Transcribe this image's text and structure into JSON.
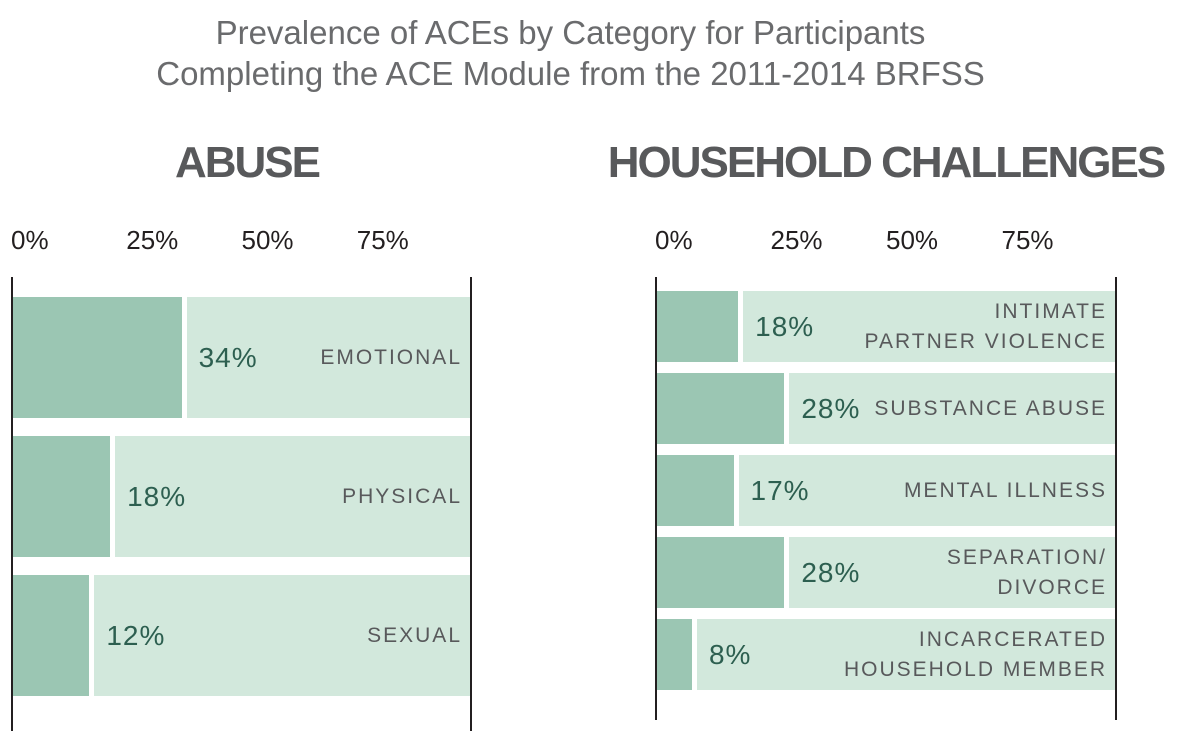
{
  "title": {
    "line1": "Prevalence of ACEs by Category for Participants",
    "line2": "Completing the ACE Module from the 2011-2014 BRFSS"
  },
  "colors": {
    "bar_fill": "#9bc6b3",
    "bar_track": "#d2e8dc",
    "value_text": "#2d5f50",
    "label_text": "#58595b",
    "header_text": "#58595b",
    "title_text": "#6a6b6d",
    "axis_text": "#231f20",
    "axis_line": "#231f20"
  },
  "chart_data": [
    {
      "type": "bar",
      "title": "ABUSE",
      "orientation": "horizontal",
      "unit": "%",
      "xlim": [
        0,
        100
      ],
      "x_ticks": [
        "0%",
        "25%",
        "50%",
        "75%"
      ],
      "grid": false,
      "axis_lines": "vertical at 0% and 100%",
      "categories": [
        "EMOTIONAL",
        "PHYSICAL",
        "SEXUAL"
      ],
      "values": [
        34,
        18,
        12
      ],
      "bar_display_pct": [
        37,
        21.5,
        17
      ],
      "bars": [
        {
          "value": 34,
          "value_label": "34%",
          "label_lines": [
            "EMOTIONAL"
          ]
        },
        {
          "value": 18,
          "value_label": "18%",
          "label_lines": [
            "PHYSICAL"
          ]
        },
        {
          "value": 12,
          "value_label": "12%",
          "label_lines": [
            "SEXUAL"
          ]
        }
      ]
    },
    {
      "type": "bar",
      "title": "HOUSEHOLD CHALLENGES",
      "orientation": "horizontal",
      "unit": "%",
      "xlim": [
        0,
        100
      ],
      "x_ticks": [
        "0%",
        "25%",
        "50%",
        "75%"
      ],
      "grid": false,
      "axis_lines": "vertical at 0% and 100%",
      "categories": [
        "INTIMATE PARTNER VIOLENCE",
        "SUBSTANCE ABUSE",
        "MENTAL ILLNESS",
        "SEPARATION/DIVORCE",
        "INCARCERATED HOUSEHOLD MEMBER"
      ],
      "values": [
        18,
        28,
        17,
        28,
        8
      ],
      "bars": [
        {
          "value": 18,
          "value_label": "18%",
          "label_lines": [
            "INTIMATE",
            "PARTNER VIOLENCE"
          ]
        },
        {
          "value": 28,
          "value_label": "28%",
          "label_lines": [
            "SUBSTANCE ABUSE"
          ]
        },
        {
          "value": 17,
          "value_label": "17%",
          "label_lines": [
            "MENTAL ILLNESS"
          ]
        },
        {
          "value": 28,
          "value_label": "28%",
          "label_lines": [
            "SEPARATION/",
            "DIVORCE"
          ]
        },
        {
          "value": 8,
          "value_label": "8%",
          "label_lines": [
            "INCARCERATED",
            "HOUSEHOLD MEMBER"
          ]
        }
      ]
    }
  ]
}
